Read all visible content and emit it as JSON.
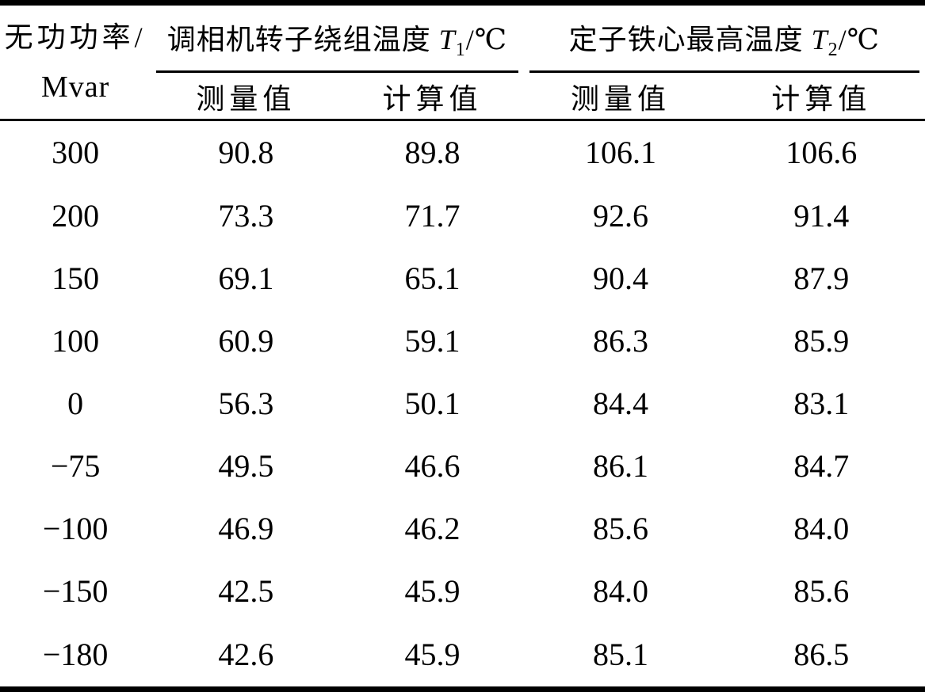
{
  "table": {
    "header": {
      "col1_line1": "无功功率/",
      "col1_line2": "Mvar",
      "group1": {
        "prefix": "调相机转子绕组温度 ",
        "var": "T",
        "sub": "1",
        "unit": "/℃"
      },
      "group2": {
        "prefix": "定子铁心最高温度 ",
        "var": "T",
        "sub": "2",
        "unit": "/℃"
      },
      "subheaders": [
        "测量值",
        "计算值",
        "测量值",
        "计算值"
      ]
    },
    "rows": [
      {
        "cells": [
          "300",
          "90.8",
          "89.8",
          "106.1",
          "106.6"
        ]
      },
      {
        "cells": [
          "200",
          "73.3",
          "71.7",
          "92.6",
          "91.4"
        ]
      },
      {
        "cells": [
          "150",
          "69.1",
          "65.1",
          "90.4",
          "87.9"
        ]
      },
      {
        "cells": [
          "100",
          "60.9",
          "59.1",
          "86.3",
          "85.9"
        ]
      },
      {
        "cells": [
          "0",
          "56.3",
          "50.1",
          "84.4",
          "83.1"
        ]
      },
      {
        "cells": [
          "−75",
          "49.5",
          "46.6",
          "86.1",
          "84.7"
        ]
      },
      {
        "cells": [
          "−100",
          "46.9",
          "46.2",
          "85.6",
          "84.0"
        ]
      },
      {
        "cells": [
          "−150",
          "42.5",
          "45.9",
          "84.0",
          "85.6"
        ]
      },
      {
        "cells": [
          "−180",
          "42.6",
          "45.9",
          "85.1",
          "86.5"
        ]
      }
    ]
  },
  "chart_data": {
    "type": "table",
    "title": "",
    "columns": [
      "无功功率/Mvar",
      "调相机转子绕组温度 T1/℃ 测量值",
      "调相机转子绕组温度 T1/℃ 计算值",
      "定子铁心最高温度 T2/℃ 测量值",
      "定子铁心最高温度 T2/℃ 计算值"
    ],
    "rows": [
      [
        300,
        90.8,
        89.8,
        106.1,
        106.6
      ],
      [
        200,
        73.3,
        71.7,
        92.6,
        91.4
      ],
      [
        150,
        69.1,
        65.1,
        90.4,
        87.9
      ],
      [
        100,
        60.9,
        59.1,
        86.3,
        85.9
      ],
      [
        0,
        56.3,
        50.1,
        84.4,
        83.1
      ],
      [
        -75,
        49.5,
        46.6,
        86.1,
        84.7
      ],
      [
        -100,
        46.9,
        46.2,
        85.6,
        84.0
      ],
      [
        -150,
        42.5,
        45.9,
        84.0,
        85.6
      ],
      [
        -180,
        42.6,
        45.9,
        85.1,
        86.5
      ]
    ],
    "colors": {
      "text": "#000000",
      "background": "#ffffff",
      "rule": "#000000"
    }
  }
}
